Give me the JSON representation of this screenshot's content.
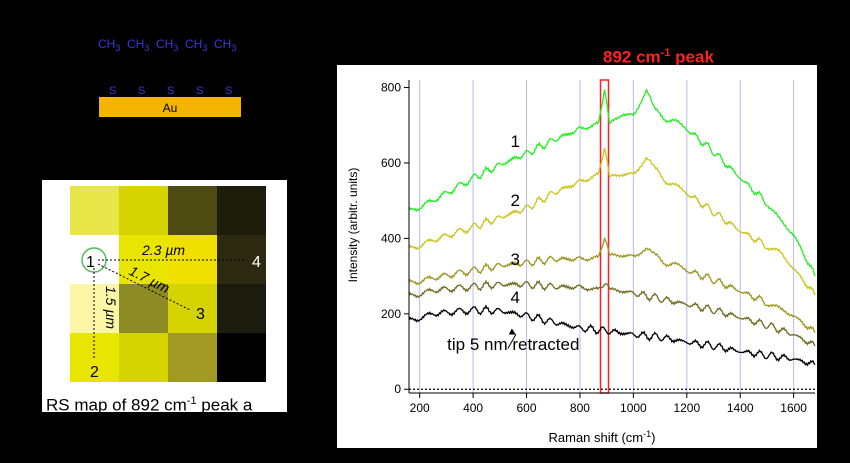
{
  "molecule": {
    "groups": [
      "CH",
      "CH",
      "CH",
      "CH",
      "CH"
    ],
    "subscript": "3",
    "sulfur": [
      "S",
      "S",
      "S",
      "S",
      "S"
    ],
    "substrate": "Au",
    "colors": {
      "text": "#3a3ad8",
      "gold": "#f4b400"
    }
  },
  "map": {
    "caption_pre": "RS map of 892 cm",
    "caption_sup": "-1",
    "caption_post": " peak a",
    "grid": [
      [
        "#e9e64a",
        "#d6d400",
        "#4d4a12",
        "#1e1c0a"
      ],
      [
        "#ffffff",
        "#e8e600",
        "#efe000",
        "#2c2a10"
      ],
      [
        "#fbf7a6",
        "#8e8a24",
        "#d6d400",
        "#1c1c0e"
      ],
      [
        "#e8e600",
        "#d6d400",
        "#a19a25",
        "#000000"
      ]
    ],
    "points": [
      "1",
      "2",
      "3",
      "4"
    ],
    "distances": {
      "d14": "2.3 µm",
      "d13": "1.7 µm",
      "d12": "1.5 µm"
    }
  },
  "peak_label": {
    "pre": "892 cm",
    "sup": "-1",
    "post": " peak"
  },
  "chart_data": {
    "type": "line",
    "xlabel_pre": "Raman shift (cm",
    "xlabel_sup": "-1",
    "xlabel_post": ")",
    "ylabel": "Intensity (arbitr. units)",
    "xlim": [
      160,
      1680
    ],
    "ylim": [
      -10,
      820
    ],
    "xticks": [
      200,
      400,
      600,
      800,
      1000,
      1200,
      1400,
      1600
    ],
    "yticks": [
      0,
      200,
      400,
      600,
      800
    ],
    "vgrid": [
      200,
      400,
      600,
      800,
      1000,
      1200,
      1400,
      1600
    ],
    "highlight": {
      "x": 892,
      "label": "892 cm-1 peak"
    },
    "series": [
      {
        "name": "1",
        "color": "#22ee22",
        "points": [
          [
            160,
            470
          ],
          [
            250,
            500
          ],
          [
            400,
            560
          ],
          [
            500,
            595
          ],
          [
            600,
            625
          ],
          [
            700,
            660
          ],
          [
            800,
            690
          ],
          [
            870,
            705
          ],
          [
            892,
            790
          ],
          [
            910,
            700
          ],
          [
            960,
            730
          ],
          [
            1000,
            725
          ],
          [
            1050,
            790
          ],
          [
            1080,
            735
          ],
          [
            1150,
            710
          ],
          [
            1200,
            690
          ],
          [
            1300,
            630
          ],
          [
            1400,
            560
          ],
          [
            1500,
            495
          ],
          [
            1550,
            445
          ],
          [
            1600,
            410
          ],
          [
            1680,
            300
          ]
        ]
      },
      {
        "name": "2",
        "color": "#c9c41a",
        "points": [
          [
            160,
            370
          ],
          [
            250,
            395
          ],
          [
            400,
            430
          ],
          [
            500,
            455
          ],
          [
            600,
            480
          ],
          [
            700,
            520
          ],
          [
            800,
            550
          ],
          [
            870,
            570
          ],
          [
            892,
            635
          ],
          [
            910,
            560
          ],
          [
            960,
            570
          ],
          [
            1000,
            570
          ],
          [
            1050,
            610
          ],
          [
            1080,
            580
          ],
          [
            1150,
            540
          ],
          [
            1200,
            520
          ],
          [
            1300,
            470
          ],
          [
            1400,
            420
          ],
          [
            1500,
            380
          ],
          [
            1550,
            360
          ],
          [
            1600,
            320
          ],
          [
            1680,
            250
          ]
        ]
      },
      {
        "name": "3",
        "color": "#9c9620",
        "points": [
          [
            160,
            280
          ],
          [
            250,
            295
          ],
          [
            400,
            315
          ],
          [
            500,
            328
          ],
          [
            600,
            335
          ],
          [
            700,
            345
          ],
          [
            800,
            345
          ],
          [
            870,
            350
          ],
          [
            892,
            395
          ],
          [
            910,
            352
          ],
          [
            960,
            355
          ],
          [
            1000,
            352
          ],
          [
            1050,
            370
          ],
          [
            1080,
            350
          ],
          [
            1150,
            330
          ],
          [
            1200,
            315
          ],
          [
            1300,
            290
          ],
          [
            1400,
            260
          ],
          [
            1500,
            230
          ],
          [
            1550,
            210
          ],
          [
            1600,
            195
          ],
          [
            1680,
            150
          ]
        ]
      },
      {
        "name": "4",
        "color": "#716b22",
        "points": [
          [
            160,
            245
          ],
          [
            250,
            262
          ],
          [
            400,
            272
          ],
          [
            500,
            278
          ],
          [
            600,
            278
          ],
          [
            700,
            272
          ],
          [
            800,
            270
          ],
          [
            870,
            265
          ],
          [
            892,
            273
          ],
          [
            910,
            262
          ],
          [
            960,
            260
          ],
          [
            1000,
            255
          ],
          [
            1100,
            240
          ],
          [
            1200,
            225
          ],
          [
            1300,
            210
          ],
          [
            1400,
            190
          ],
          [
            1500,
            170
          ],
          [
            1600,
            145
          ],
          [
            1680,
            115
          ]
        ]
      },
      {
        "name": "tip 5 nm retracted",
        "color": "#000000",
        "points": [
          [
            160,
            180
          ],
          [
            250,
            200
          ],
          [
            400,
            210
          ],
          [
            500,
            208
          ],
          [
            600,
            195
          ],
          [
            700,
            178
          ],
          [
            800,
            162
          ],
          [
            900,
            155
          ],
          [
            1000,
            145
          ],
          [
            1100,
            138
          ],
          [
            1200,
            125
          ],
          [
            1300,
            115
          ],
          [
            1400,
            100
          ],
          [
            1500,
            90
          ],
          [
            1600,
            80
          ],
          [
            1680,
            65
          ]
        ]
      }
    ],
    "labels": [
      {
        "text": "1",
        "x": 895
      },
      {
        "text": "2",
        "x": 895
      },
      {
        "text": "3",
        "x": 895
      },
      {
        "text": "4",
        "x": 895
      },
      {
        "text": "tip 5 nm retracted"
      }
    ]
  }
}
